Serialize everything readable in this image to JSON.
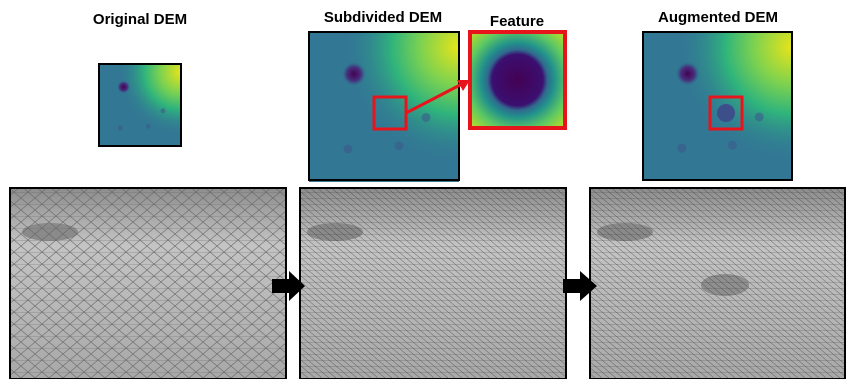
{
  "labels": {
    "original": "Original DEM",
    "subdivided": "Subdivided DEM",
    "feature": "Feature",
    "augmented": "Augmented DEM"
  }
}
